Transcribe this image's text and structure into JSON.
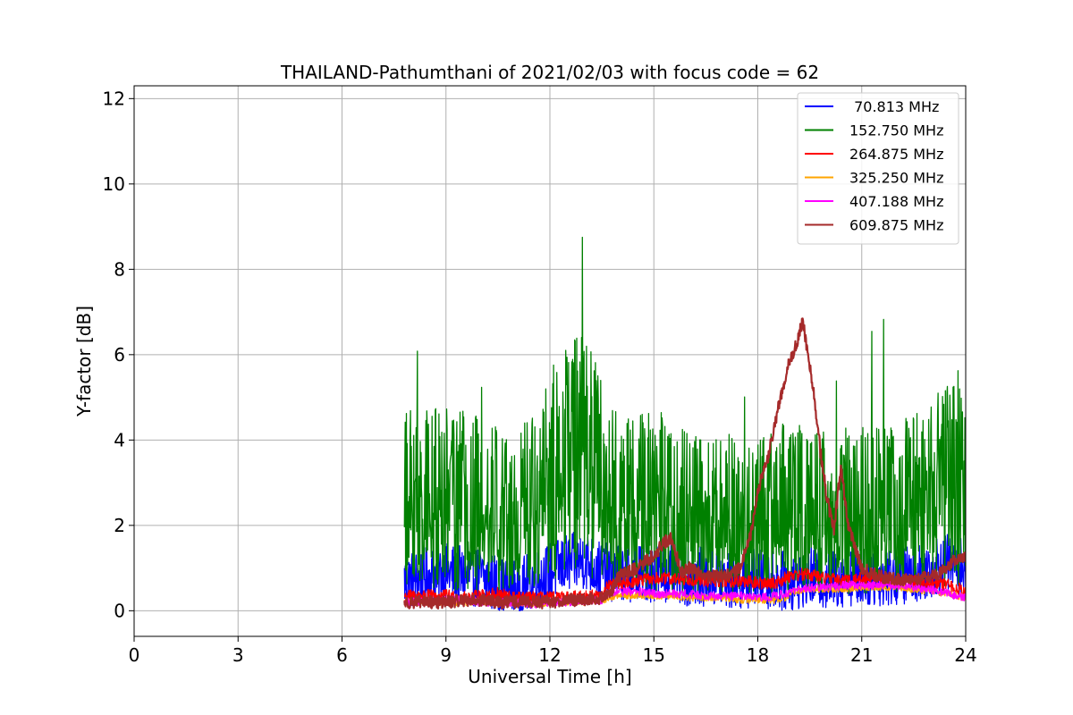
{
  "chart_data": {
    "type": "line",
    "title": "THAILAND-Pathumthani of 2021/02/03 with focus code = 62",
    "xlabel": "Universal Time [h]",
    "ylabel": "Y-factor [dB]",
    "xlim": [
      0,
      24
    ],
    "ylim": [
      -0.6,
      12.3
    ],
    "xticks": [
      0,
      3,
      6,
      9,
      12,
      15,
      18,
      21,
      24
    ],
    "yticks": [
      0,
      2,
      4,
      6,
      8,
      10,
      12
    ],
    "grid": true,
    "legend_position": "top-right",
    "series": [
      {
        "name": " 70.813 MHz",
        "color": "#0000ff",
        "x": [
          7.8,
          8.5,
          9.0,
          9.5,
          10.0,
          10.5,
          11.0,
          11.5,
          12.0,
          12.5,
          13.0,
          13.5,
          14.0,
          14.5,
          15.0,
          15.5,
          16.0,
          16.5,
          17.0,
          17.5,
          18.0,
          18.5,
          19.0,
          19.5,
          20.0,
          20.5,
          21.0,
          21.5,
          22.0,
          22.5,
          23.0,
          23.5,
          24.0
        ],
        "y": [
          0.7,
          0.8,
          0.9,
          0.8,
          0.8,
          0.6,
          0.5,
          0.7,
          0.9,
          1.1,
          1.2,
          0.9,
          0.9,
          0.9,
          0.9,
          0.9,
          0.8,
          0.8,
          0.7,
          0.7,
          0.8,
          0.7,
          0.7,
          0.8,
          0.7,
          0.8,
          0.8,
          0.8,
          0.8,
          0.9,
          1.0,
          1.1,
          1.0
        ],
        "noise": 0.7
      },
      {
        "name": "152.750 MHz",
        "color": "#008000",
        "x": [
          7.8,
          8.5,
          9.0,
          9.5,
          10.0,
          10.5,
          11.0,
          11.5,
          12.0,
          12.5,
          13.0,
          13.5,
          14.0,
          14.5,
          15.0,
          15.5,
          16.0,
          16.5,
          17.0,
          17.5,
          18.0,
          18.5,
          19.0,
          19.5,
          20.0,
          20.5,
          21.0,
          21.5,
          22.0,
          22.5,
          23.0,
          23.5,
          24.0
        ],
        "y": [
          2.3,
          2.3,
          2.4,
          2.4,
          2.3,
          2.1,
          2.0,
          2.3,
          3.2,
          4.0,
          4.3,
          3.0,
          2.4,
          2.3,
          2.3,
          2.2,
          1.9,
          1.8,
          1.7,
          1.8,
          1.9,
          2.0,
          2.0,
          1.9,
          1.8,
          1.9,
          2.0,
          2.0,
          2.2,
          2.3,
          2.6,
          2.9,
          2.8
        ],
        "noise": 2.4
      },
      {
        "name": "264.875 MHz",
        "color": "#ff0000",
        "x": [
          7.8,
          8.5,
          9.0,
          9.5,
          10.0,
          10.5,
          11.0,
          11.5,
          12.0,
          12.5,
          13.0,
          13.5,
          13.7,
          14.0,
          14.5,
          15.0,
          15.5,
          16.0,
          16.5,
          17.0,
          17.5,
          18.0,
          18.5,
          19.0,
          19.5,
          20.0,
          20.5,
          21.0,
          21.5,
          22.0,
          22.5,
          23.0,
          23.5,
          24.0
        ],
        "y": [
          0.35,
          0.35,
          0.35,
          0.3,
          0.35,
          0.4,
          0.3,
          0.3,
          0.3,
          0.3,
          0.35,
          0.35,
          0.6,
          0.65,
          0.7,
          0.75,
          0.75,
          0.75,
          0.7,
          0.7,
          0.7,
          0.65,
          0.65,
          0.85,
          0.85,
          0.75,
          0.7,
          0.75,
          0.75,
          0.7,
          0.7,
          0.65,
          0.6,
          0.45
        ],
        "noise": 0.15
      },
      {
        "name": "325.250 MHz",
        "color": "#ffa500",
        "x": [
          7.8,
          8.5,
          9.0,
          9.5,
          10.0,
          10.5,
          11.0,
          11.5,
          12.0,
          12.5,
          13.0,
          13.5,
          13.7,
          14.0,
          14.5,
          15.0,
          15.5,
          16.0,
          16.5,
          17.0,
          17.5,
          18.0,
          18.5,
          18.8,
          19.0,
          19.5,
          20.0,
          20.5,
          21.0,
          21.5,
          22.0,
          22.5,
          23.0,
          23.5,
          24.0
        ],
        "y": [
          0.2,
          0.2,
          0.2,
          0.2,
          0.2,
          0.2,
          0.2,
          0.15,
          0.2,
          0.2,
          0.2,
          0.25,
          0.3,
          0.35,
          0.35,
          0.35,
          0.35,
          0.3,
          0.3,
          0.3,
          0.25,
          0.25,
          0.25,
          0.3,
          0.45,
          0.5,
          0.5,
          0.5,
          0.55,
          0.55,
          0.55,
          0.5,
          0.45,
          0.4,
          0.3
        ],
        "noise": 0.08
      },
      {
        "name": "407.188 MHz",
        "color": "#ff00ff",
        "x": [
          7.8,
          8.5,
          9.0,
          9.5,
          10.0,
          10.5,
          11.0,
          11.5,
          12.0,
          12.5,
          13.0,
          13.5,
          13.7,
          14.0,
          14.5,
          15.0,
          15.5,
          16.0,
          16.5,
          17.0,
          17.5,
          18.0,
          18.5,
          19.0,
          19.5,
          20.0,
          20.5,
          21.0,
          21.5,
          22.0,
          22.5,
          23.0,
          23.5,
          24.0
        ],
        "y": [
          0.2,
          0.2,
          0.25,
          0.25,
          0.2,
          0.2,
          0.2,
          0.15,
          0.2,
          0.2,
          0.25,
          0.25,
          0.4,
          0.45,
          0.45,
          0.4,
          0.4,
          0.4,
          0.35,
          0.35,
          0.35,
          0.3,
          0.35,
          0.45,
          0.55,
          0.55,
          0.6,
          0.6,
          0.6,
          0.6,
          0.55,
          0.5,
          0.4,
          0.3
        ],
        "noise": 0.1
      },
      {
        "name": "609.875 MHz",
        "color": "#a52a2a",
        "x": [
          7.8,
          8.5,
          9.0,
          9.5,
          10.0,
          10.5,
          11.0,
          11.5,
          12.0,
          12.5,
          13.0,
          13.5,
          13.8,
          14.0,
          14.5,
          15.0,
          15.3,
          15.5,
          15.8,
          16.0,
          16.5,
          17.0,
          17.5,
          17.8,
          18.0,
          18.3,
          18.6,
          18.9,
          19.1,
          19.3,
          19.6,
          19.8,
          20.0,
          20.2,
          20.4,
          20.6,
          20.8,
          21.0,
          21.5,
          22.0,
          22.5,
          23.0,
          23.3,
          23.7,
          24.0
        ],
        "y": [
          0.2,
          0.2,
          0.2,
          0.25,
          0.25,
          0.2,
          0.2,
          0.2,
          0.2,
          0.25,
          0.25,
          0.3,
          0.5,
          0.8,
          1.0,
          1.3,
          1.6,
          1.7,
          0.9,
          1.0,
          0.8,
          0.8,
          1.0,
          1.8,
          2.8,
          3.6,
          4.8,
          5.8,
          6.2,
          6.8,
          5.2,
          3.8,
          2.6,
          1.9,
          3.4,
          2.0,
          1.5,
          1.0,
          0.8,
          0.75,
          0.7,
          0.8,
          0.9,
          1.2,
          1.3
        ],
        "noise": 0.15
      }
    ]
  }
}
